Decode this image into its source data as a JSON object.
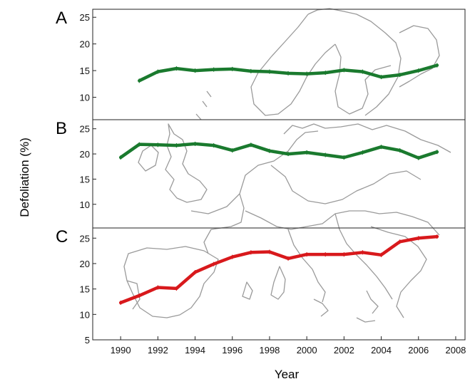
{
  "chart_data": {
    "type": "line",
    "xlabel": "Year",
    "ylabel": "Defoliation (%)",
    "xlim": [
      1988.5,
      2008.5
    ],
    "x_ticks": [
      "1990",
      "1992",
      "1994",
      "1996",
      "1998",
      "2000",
      "2002",
      "2004",
      "2006",
      "2008"
    ],
    "background": "Map of Europe (grey outline)",
    "panels": [
      {
        "label": "A",
        "y_ticks": [
          "10",
          "15",
          "20",
          "25"
        ],
        "ylim": [
          5.8,
          26.5
        ],
        "color": "#1a7a2e",
        "x": [
          1991,
          1992,
          1993,
          1994,
          1995,
          1996,
          1997,
          1998,
          1999,
          2000,
          2001,
          2002,
          2003,
          2004,
          2005,
          2006,
          2007
        ],
        "y": [
          13.1,
          14.8,
          15.4,
          15.0,
          15.2,
          15.3,
          14.9,
          14.8,
          14.5,
          14.4,
          14.6,
          15.1,
          14.8,
          13.8,
          14.2,
          15.0,
          16.0
        ]
      },
      {
        "label": "B",
        "y_ticks": [
          "10",
          "15",
          "20",
          "25"
        ],
        "ylim": [
          5.3,
          26.8
        ],
        "color": "#1a7a2e",
        "x": [
          1990,
          1991,
          1992,
          1993,
          1994,
          1995,
          1996,
          1997,
          1998,
          1999,
          2000,
          2001,
          2002,
          2003,
          2004,
          2005,
          2006,
          2007
        ],
        "y": [
          19.3,
          21.9,
          21.8,
          21.7,
          22.0,
          21.7,
          20.7,
          21.8,
          20.6,
          20.0,
          20.3,
          19.8,
          19.3,
          20.3,
          21.4,
          20.7,
          19.2,
          20.4
        ]
      },
      {
        "label": "C",
        "y_ticks": [
          "5",
          "10",
          "15",
          "20",
          "25"
        ],
        "ylim": [
          5,
          27
        ],
        "color": "#d8191c",
        "x": [
          1990,
          1991,
          1992,
          1993,
          1994,
          1995,
          1996,
          1997,
          1998,
          1999,
          2000,
          2001,
          2002,
          2003,
          2004,
          2005,
          2006,
          2007
        ],
        "y": [
          12.3,
          13.7,
          15.3,
          15.1,
          18.3,
          19.9,
          21.3,
          22.2,
          22.3,
          21.0,
          21.8,
          21.8,
          21.8,
          22.2,
          21.7,
          24.3,
          25.0,
          25.3
        ]
      }
    ]
  }
}
